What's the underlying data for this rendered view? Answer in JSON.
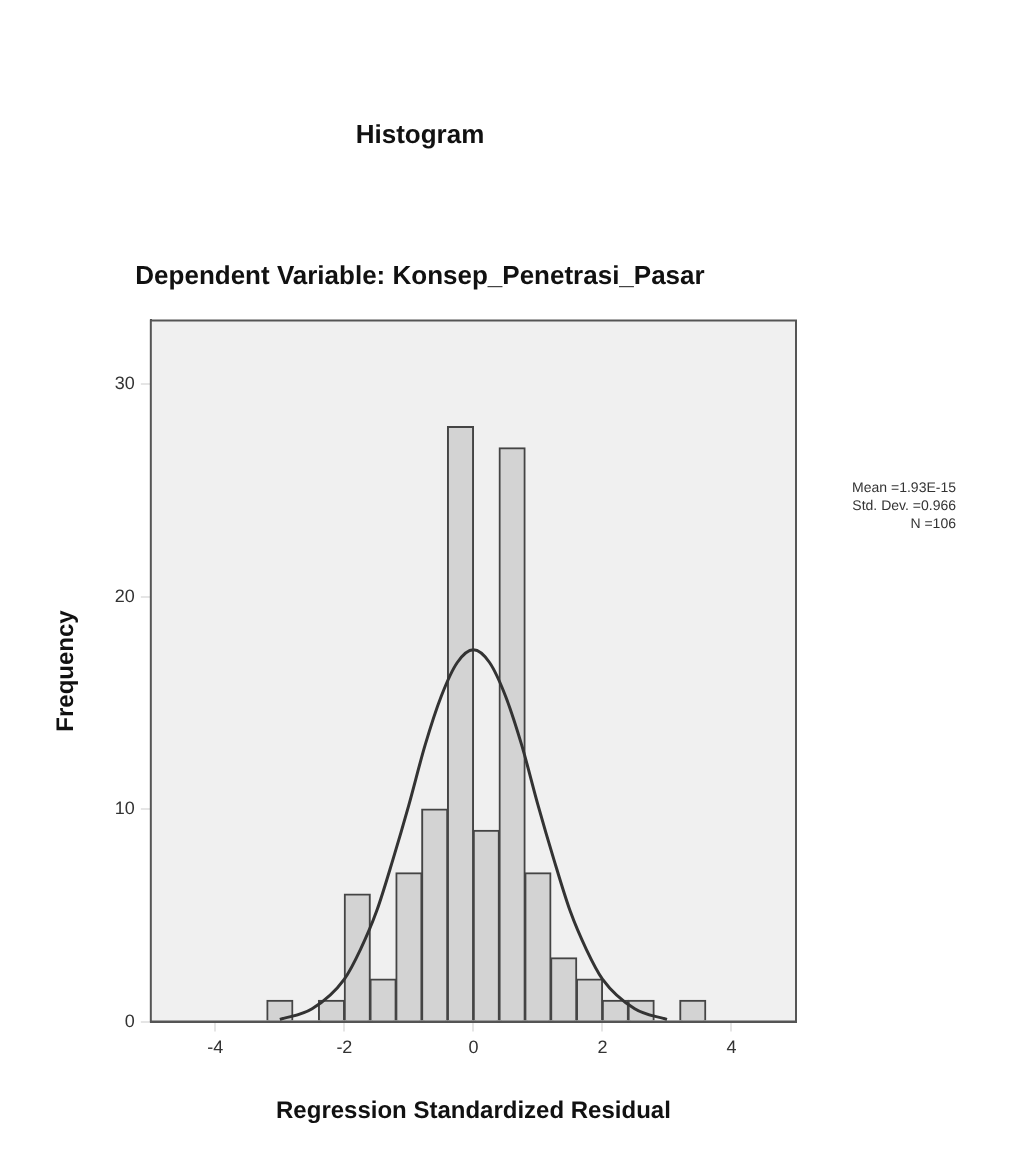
{
  "chart_data": {
    "type": "histogram",
    "title": "Histogram",
    "subtitle": "Dependent Variable: Konsep_Penetrasi_Pasar",
    "xlabel": "Regression Standardized Residual",
    "ylabel": "Frequency",
    "series": [
      {
        "color": "#d3d3d3",
        "bins": [
          -3.2,
          -2.8,
          -2.4,
          -2.0,
          -1.6,
          -1.2,
          -0.8,
          -0.4,
          0,
          0.4,
          0.8,
          1.2,
          1.6,
          2.0,
          2.4,
          2.8,
          3.2,
          3.6
        ],
        "values": [
          1,
          0,
          1,
          6,
          2,
          7,
          10,
          28,
          9,
          27,
          7,
          3,
          2,
          1,
          1,
          0,
          1
        ]
      },
      {
        "type": "line",
        "color": "#333333",
        "x": [
          -3.0,
          -2.5,
          -2.0,
          -1.75,
          -1.5,
          -1.25,
          -1.0,
          -0.75,
          -0.5,
          -0.25,
          0,
          0.25,
          0.5,
          0.75,
          1.0,
          1.25,
          1.5,
          1.75,
          2.0,
          2.5,
          3.0
        ],
        "values": [
          0.1,
          0.6,
          2.0,
          3.4,
          5.2,
          7.6,
          10.2,
          13.0,
          15.3,
          16.9,
          17.5,
          16.9,
          15.3,
          13.0,
          10.2,
          7.6,
          5.2,
          3.4,
          2.0,
          0.6,
          0.1
        ]
      }
    ],
    "xlim": [
      -5,
      5
    ],
    "xticks": [
      -4,
      -2,
      0,
      2,
      4
    ],
    "ylim": [
      0,
      33
    ],
    "yticks": [
      0,
      10,
      20,
      30
    ],
    "legend": false,
    "annotations": [
      "Mean =1.93E-15",
      "Std. Dev. =0.966",
      "N =106"
    ]
  }
}
